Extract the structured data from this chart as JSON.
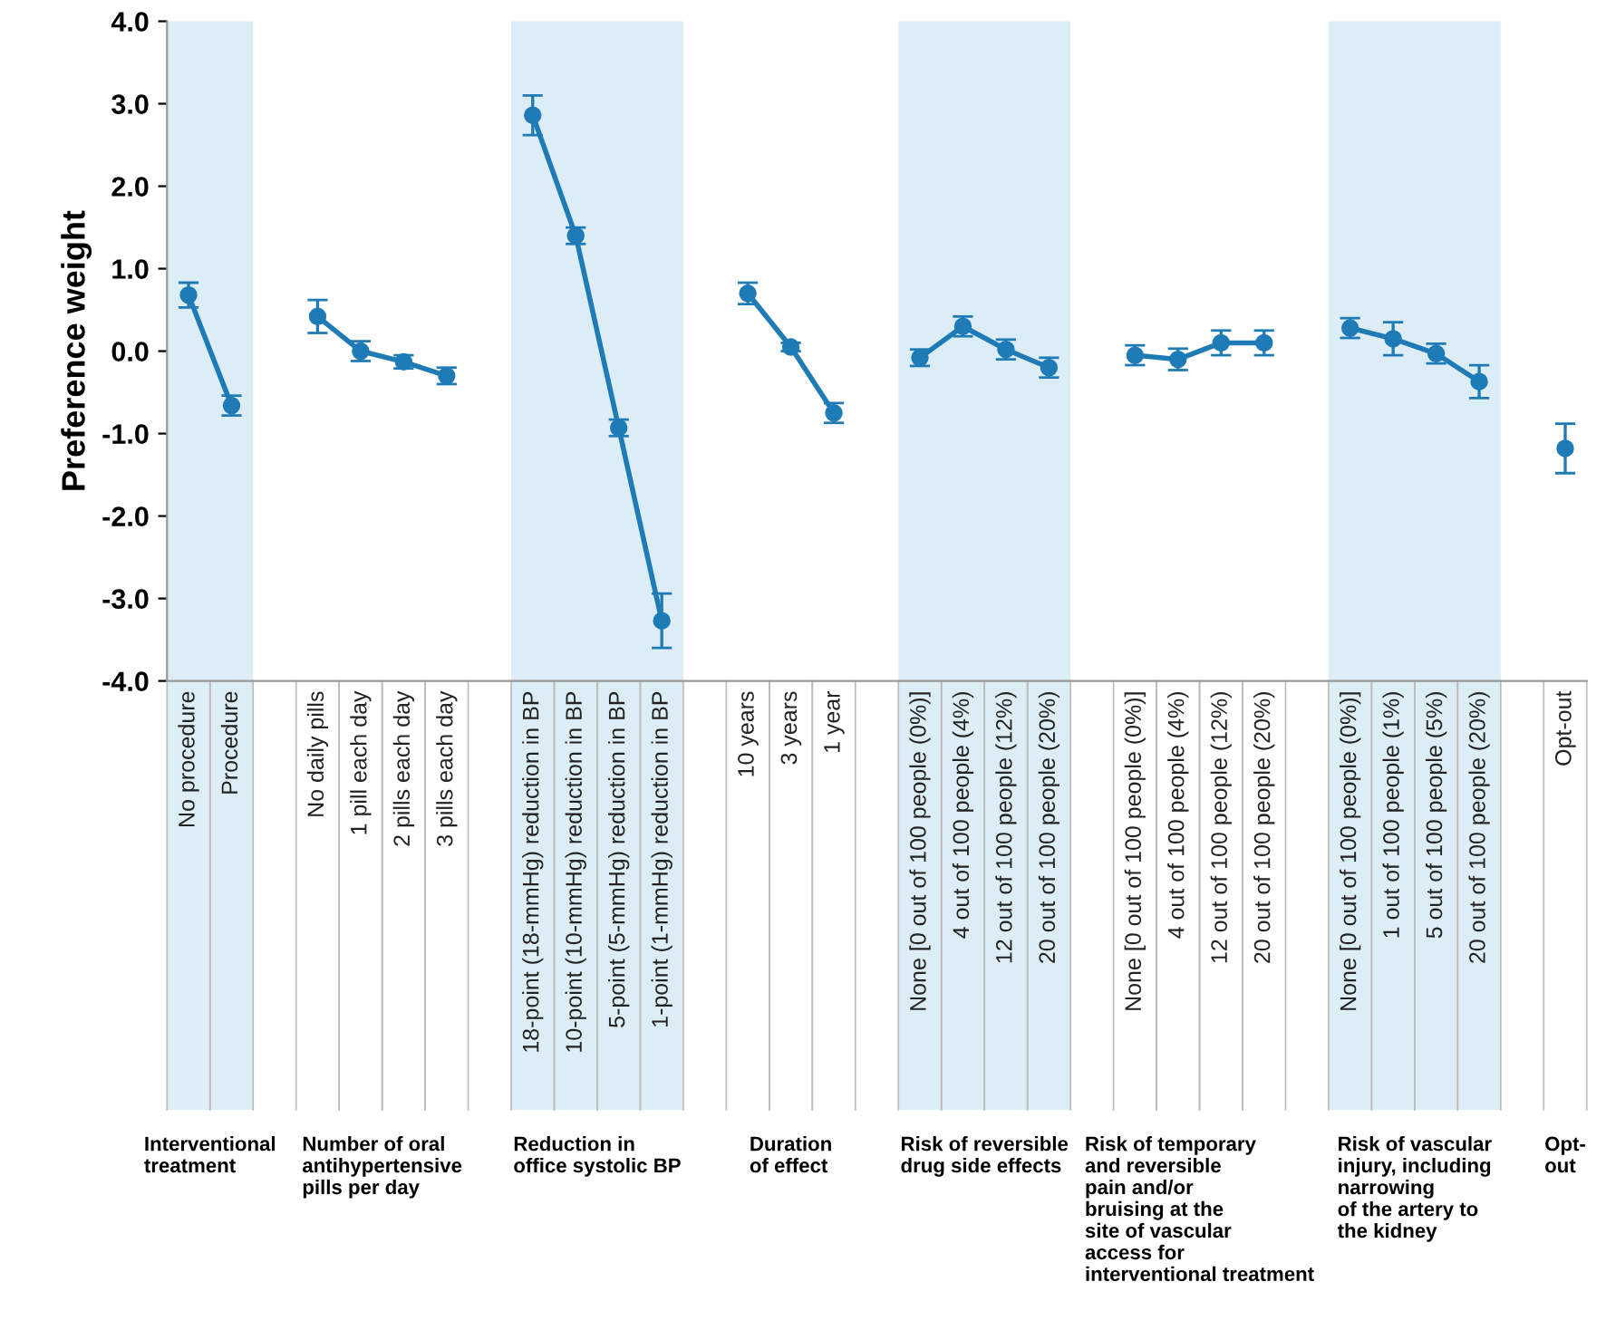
{
  "chart_data": {
    "type": "line",
    "ylabel": "Preference weight",
    "color": "#1f7bb6",
    "marker": "circle",
    "line_style": "solid",
    "grid": false,
    "legend": false,
    "categories": [
      "No procedure",
      "Procedure",
      null,
      "No daily pills",
      "1 pill each day",
      "2 pills each day",
      "3 pills each day",
      null,
      "18-point (18-mmHg) reduction in BP",
      "10-point (10-mmHg) reduction in BP",
      "5-point (5-mmHg) reduction in BP",
      "1-point (1-mmHg) reduction in BP",
      null,
      "10 years",
      "3 years",
      "1 year",
      null,
      "None [0 out of 100 people (0%)]",
      "4 out of 100 people (4%)",
      "12 out of 100 people (12%)",
      "20 out of 100 people (20%)",
      null,
      "None [0 out of 100 people (0%)] ",
      "4 out of 100 people (4%) ",
      "12 out of 100 people (12%) ",
      "20 out of 100 people (20%) ",
      null,
      "None [0 out of 100 people (0%)]  ",
      "1 out of 100 people (1%)",
      "5 out of 100 people (5%)",
      "20 out of 100 people (20%)  ",
      null,
      "Opt-out"
    ],
    "values": [
      0.68,
      -0.66,
      null,
      0.42,
      0.0,
      -0.13,
      -0.3,
      null,
      2.86,
      1.4,
      -0.93,
      -3.27,
      null,
      0.7,
      0.05,
      -0.75,
      null,
      -0.08,
      0.3,
      0.02,
      -0.2,
      null,
      -0.05,
      -0.1,
      0.1,
      0.1,
      null,
      0.28,
      0.15,
      -0.03,
      -0.37,
      null,
      -1.18
    ],
    "errors": [
      0.15,
      0.12,
      null,
      0.2,
      0.12,
      0.08,
      0.1,
      null,
      0.24,
      0.1,
      0.1,
      0.33,
      null,
      0.13,
      0.05,
      0.12,
      null,
      0.1,
      0.12,
      0.12,
      0.12,
      null,
      0.12,
      0.13,
      0.15,
      0.15,
      null,
      0.12,
      0.2,
      0.12,
      0.2,
      null,
      0.3
    ],
    "ylim": [
      -4,
      4
    ],
    "yticks": [
      {
        "value": -4,
        "label": "-4.0"
      },
      {
        "value": -3,
        "label": "-3.0"
      },
      {
        "value": -2,
        "label": "-2.0"
      },
      {
        "value": -1,
        "label": "-1.0"
      },
      {
        "value": 0,
        "label": "0.0"
      },
      {
        "value": 1,
        "label": "1.0"
      },
      {
        "value": 2,
        "label": "2.0"
      },
      {
        "value": 3,
        "label": "3.0"
      },
      {
        "value": 4,
        "label": "4.0"
      }
    ],
    "bands": [
      {
        "axis": "x",
        "from": "No procedure",
        "to": "Procedure",
        "color": "#dcedf6"
      },
      {
        "axis": "x",
        "from": "18-point (18-mmHg) reduction in BP",
        "to": "1-point (1-mmHg) reduction in BP",
        "color": "#dcedf6"
      },
      {
        "axis": "x",
        "from": "None [0 out of 100 people (0%)]",
        "to": "20 out of 100 people (20%)",
        "color": "#dcedf6"
      },
      {
        "axis": "x",
        "from": "None [0 out of 100 people (0%)]  ",
        "to": "20 out of 100 people (20%)  ",
        "color": "#dcedf6"
      }
    ],
    "annotations": [
      "Interventional\ntreatment",
      "Number of oral\nantihypertensive\npills per day",
      "Reduction in\noffice systolic BP",
      "Duration\nof effect",
      "Risk of reversible\ndrug side effects",
      "Risk of temporary\nand reversible\npain and/or\nbruising at the\nsite of vascular\naccess for\ninterventional treatment",
      "Risk of vascular\ninjury, including\nnarrowing\nof the artery to\nthe kidney",
      "Opt-\nout"
    ]
  }
}
